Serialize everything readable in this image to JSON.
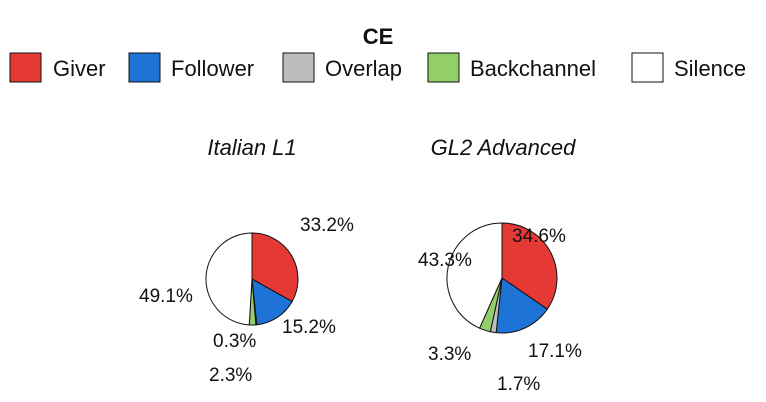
{
  "chart_data": {
    "type": "pie",
    "title": "CE",
    "legend_placement": "top",
    "categories": [
      "Giver",
      "Follower",
      "Overlap",
      "Backchannel",
      "Silence"
    ],
    "colors": [
      "#e53935",
      "#1e74d6",
      "#bdbdbd",
      "#92cf68",
      "#ffffff"
    ],
    "legend": {
      "items": [
        {
          "label": "Giver",
          "color": "#e53935"
        },
        {
          "label": "Follower",
          "color": "#1e74d6"
        },
        {
          "label": "Overlap",
          "color": "#bdbdbd"
        },
        {
          "label": "Backchannel",
          "color": "#92cf68"
        },
        {
          "label": "Silence",
          "color": "#ffffff"
        }
      ]
    },
    "panels": [
      {
        "title": "Italian L1",
        "values": [
          33.2,
          15.2,
          0.3,
          2.3,
          49.1
        ],
        "labels": [
          "33.2%",
          "15.2%",
          "0.3%",
          "2.3%",
          "49.1%"
        ]
      },
      {
        "title": "GL2 Advanced",
        "values": [
          34.6,
          17.1,
          1.7,
          3.3,
          43.3
        ],
        "labels": [
          "34.6%",
          "17.1%",
          "1.7%",
          "3.3%",
          "43.3%"
        ]
      }
    ]
  }
}
